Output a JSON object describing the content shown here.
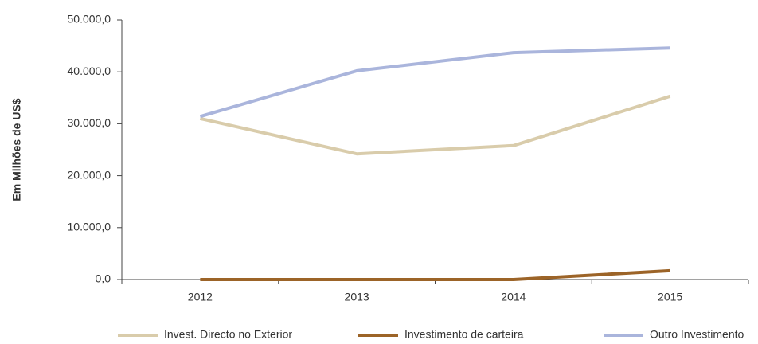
{
  "chart_data": {
    "type": "line",
    "y_label": "Em Milhões de US$",
    "categories": [
      "2012",
      "2013",
      "2014",
      "2015"
    ],
    "series": [
      {
        "name": "Invest. Directo no Exterior",
        "color": "#d9ccab",
        "values": [
          31000,
          24200,
          25800,
          35300
        ]
      },
      {
        "name": "Investimento de carteira",
        "color": "#9c6428",
        "values": [
          0,
          0,
          0,
          1700
        ]
      },
      {
        "name": "Outro Investimento",
        "color": "#aab5dc",
        "values": [
          31400,
          40200,
          43700,
          44600
        ]
      }
    ],
    "ylim": [
      0,
      50000
    ],
    "yticks": [
      {
        "value": 0,
        "label": "0,0"
      },
      {
        "value": 10000,
        "label": "10.000,0"
      },
      {
        "value": 20000,
        "label": "20.000,0"
      },
      {
        "value": 30000,
        "label": "30.000,0"
      },
      {
        "value": 40000,
        "label": "40.000,0"
      },
      {
        "value": 50000,
        "label": "50.000,0"
      }
    ],
    "legend": "bottom"
  }
}
